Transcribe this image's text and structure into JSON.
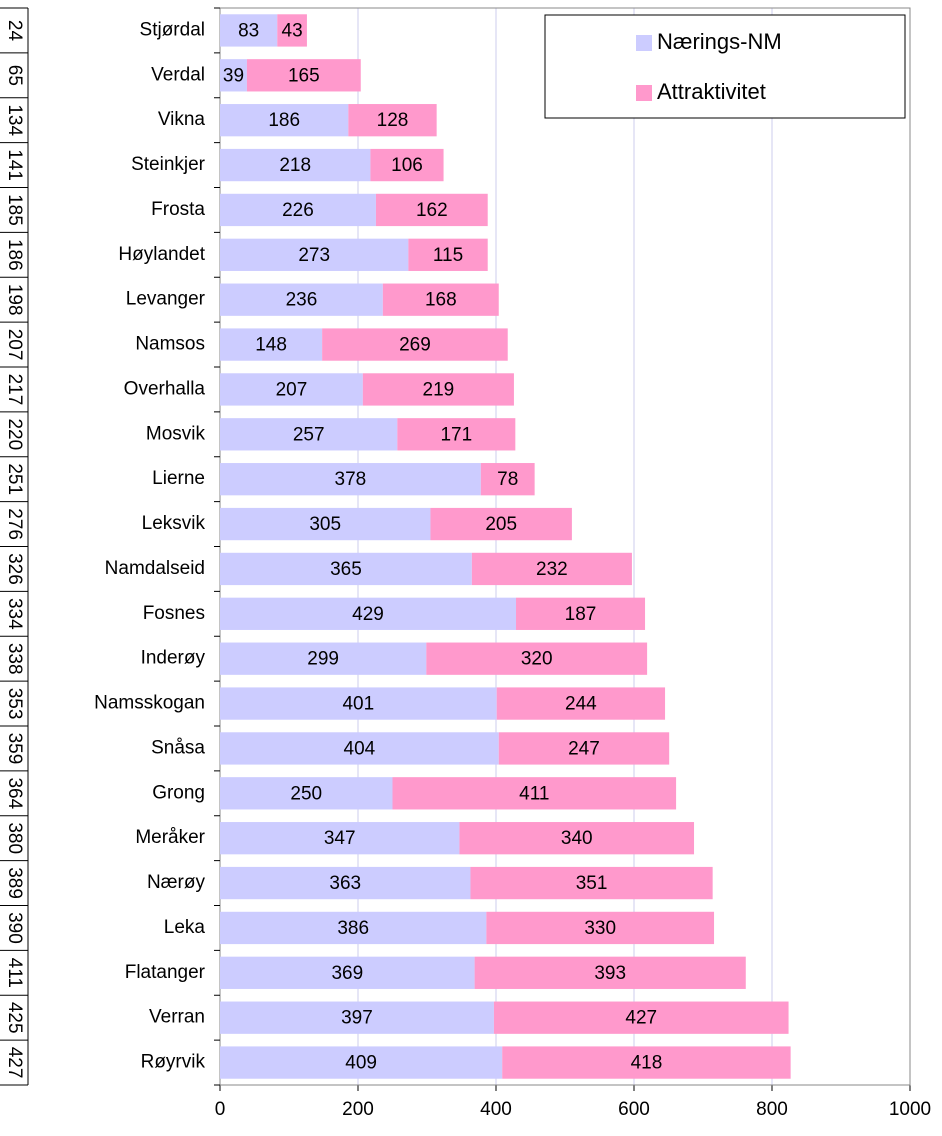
{
  "chart_data": {
    "type": "stacked_barh",
    "categories": [
      "Stjørdal",
      "Verdal",
      "Vikna",
      "Steinkjer",
      "Frosta",
      "Høylandet",
      "Levanger",
      "Namsos",
      "Overhalla",
      "Mosvik",
      "Lierne",
      "Leksvik",
      "Namdalseid",
      "Fosnes",
      "Inderøy",
      "Namsskogan",
      "Snåsa",
      "Grong",
      "Meråker",
      "Nærøy",
      "Leka",
      "Flatanger",
      "Verran",
      "Røyrvik"
    ],
    "ranks": [
      24,
      65,
      134,
      141,
      185,
      186,
      198,
      207,
      217,
      220,
      251,
      276,
      326,
      334,
      338,
      353,
      359,
      364,
      380,
      389,
      390,
      411,
      425,
      427
    ],
    "series": [
      {
        "name": "Nærings-NM",
        "color": "#ccccff",
        "values": [
          83,
          39,
          186,
          218,
          226,
          273,
          236,
          148,
          207,
          257,
          378,
          305,
          365,
          429,
          299,
          401,
          404,
          250,
          347,
          363,
          386,
          369,
          397,
          409
        ]
      },
      {
        "name": "Attraktivitet",
        "color": "#ff99cc",
        "values": [
          43,
          165,
          128,
          106,
          162,
          115,
          168,
          269,
          219,
          171,
          78,
          205,
          232,
          187,
          320,
          244,
          247,
          411,
          340,
          351,
          330,
          393,
          427,
          418
        ]
      }
    ],
    "xlim": [
      0,
      1000
    ],
    "xticks": [
      0,
      200,
      400,
      600,
      800,
      1000
    ],
    "grid": true,
    "legend": "top-right"
  }
}
